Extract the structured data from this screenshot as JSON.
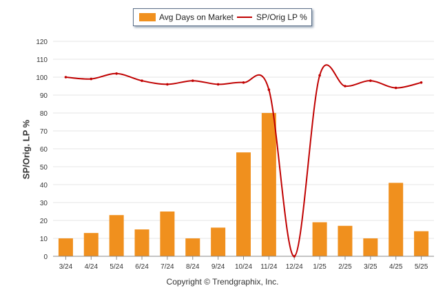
{
  "legend": {
    "bar_label": "Avg Days on Market",
    "line_label": "SP/Orig LP %"
  },
  "y_axis_title": "SP/Orig. LP %",
  "footer": "Copyright © Trendgraphix, Inc.",
  "colors": {
    "bar": "#f0901e",
    "line": "#c00000",
    "grid": "#e6e6e6",
    "axis": "#888888"
  },
  "chart_data": {
    "type": "bar",
    "categories": [
      "3/24",
      "4/24",
      "5/24",
      "6/24",
      "7/24",
      "8/24",
      "9/24",
      "10/24",
      "11/24",
      "12/24",
      "1/25",
      "2/25",
      "3/25",
      "4/25",
      "5/25"
    ],
    "series": [
      {
        "name": "Avg Days on Market",
        "type": "bar",
        "values": [
          10,
          13,
          23,
          15,
          25,
          10,
          16,
          58,
          80,
          0,
          19,
          17,
          10,
          41,
          14
        ]
      },
      {
        "name": "SP/Orig LP %",
        "type": "line",
        "values": [
          100,
          99,
          102,
          98,
          96,
          98,
          96,
          97,
          93,
          0,
          101,
          95,
          98,
          94,
          97
        ]
      }
    ],
    "ylim": [
      0,
      120
    ],
    "yticks": [
      0,
      10,
      20,
      30,
      40,
      50,
      60,
      70,
      80,
      90,
      100,
      110,
      120
    ],
    "ylabel": "SP/Orig. LP %",
    "grid": true,
    "legend_position": "top-center"
  }
}
